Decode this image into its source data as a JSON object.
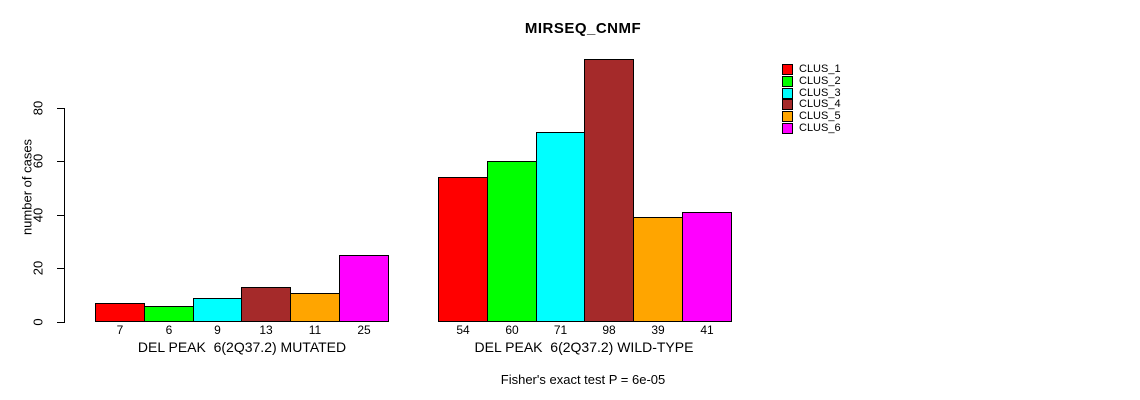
{
  "chart_data": {
    "type": "bar",
    "title": "MIRSEQ_CNMF",
    "ylabel": "number of cases",
    "xlabel": "",
    "yticks": [
      0,
      20,
      40,
      60,
      80
    ],
    "ylim": [
      0,
      103
    ],
    "grid": false,
    "legend_position": "top-right",
    "series_labels": [
      "CLUS_1",
      "CLUS_2",
      "CLUS_3",
      "CLUS_4",
      "CLUS_5",
      "CLUS_6"
    ],
    "colors": [
      "#ff0000",
      "#00ff00",
      "#00ffff",
      "#a52a2a",
      "#ffa500",
      "#ff00ff"
    ],
    "groups": [
      {
        "label": "DEL PEAK  6(2Q37.2) MUTATED",
        "values": [
          7,
          6,
          9,
          13,
          11,
          25
        ]
      },
      {
        "label": "DEL PEAK  6(2Q37.2) WILD-TYPE",
        "values": [
          54,
          60,
          71,
          98,
          39,
          41
        ]
      }
    ],
    "annotation": "Fisher's exact test P = 6e-05"
  }
}
